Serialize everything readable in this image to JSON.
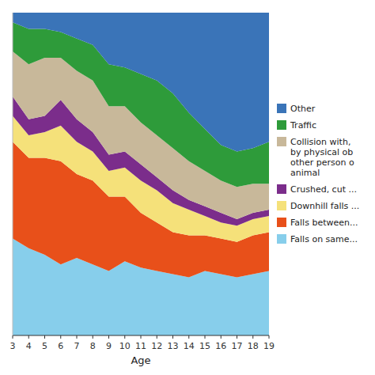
{
  "chart_data": {
    "type": "area",
    "stacked": true,
    "x_label": "Age",
    "x": [
      3,
      4,
      5,
      6,
      7,
      8,
      9,
      10,
      11,
      12,
      13,
      14,
      15,
      16,
      17,
      18,
      19
    ],
    "xlim": [
      3,
      19
    ],
    "xticks": [
      3,
      4,
      5,
      6,
      7,
      8,
      9,
      10,
      11,
      12,
      13,
      14,
      15,
      16,
      17,
      18,
      19
    ],
    "ylim": [
      0,
      100
    ],
    "tick_labels": "x",
    "grid": false,
    "legend": "right",
    "series": [
      {
        "name": "Falls on same...",
        "color": "#87CEEB",
        "values": [
          30,
          27,
          25,
          22,
          24,
          22,
          20,
          23,
          21,
          20,
          19,
          18,
          20,
          19,
          18,
          19,
          20
        ]
      },
      {
        "name": "Falls between...",
        "color": "#E8501A",
        "values": [
          30,
          28,
          30,
          32,
          26,
          26,
          23,
          20,
          17,
          15,
          13,
          13,
          11,
          11,
          11,
          12,
          12
        ]
      },
      {
        "name": "Downhill falls ...",
        "color": "#F5E17A",
        "values": [
          8,
          7,
          8,
          11,
          10,
          9,
          8,
          9,
          10,
          10,
          9,
          8,
          6,
          5,
          5,
          5,
          5
        ]
      },
      {
        "name": "Crushed, cut ...",
        "color": "#7B2D8B",
        "values": [
          6,
          5,
          5,
          8,
          7,
          6,
          5,
          5,
          5,
          4,
          4,
          3,
          3,
          3,
          2,
          2,
          2
        ]
      },
      {
        "name": "Collision with,\nby physical ob\nother person o\nanimal",
        "color": "#C8B89A",
        "values": [
          14,
          17,
          18,
          13,
          15,
          16,
          15,
          14,
          13,
          13,
          13,
          12,
          11,
          10,
          10,
          9,
          8
        ]
      },
      {
        "name": "Traffic",
        "color": "#2E9B3A",
        "values": [
          9,
          11,
          9,
          8,
          10,
          11,
          13,
          12,
          15,
          17,
          17,
          15,
          13,
          11,
          11,
          11,
          13
        ]
      },
      {
        "name": "Other",
        "color": "#3A74B8",
        "values": [
          3,
          5,
          5,
          6,
          8,
          10,
          16,
          17,
          19,
          21,
          25,
          31,
          36,
          41,
          43,
          42,
          40
        ]
      }
    ]
  }
}
